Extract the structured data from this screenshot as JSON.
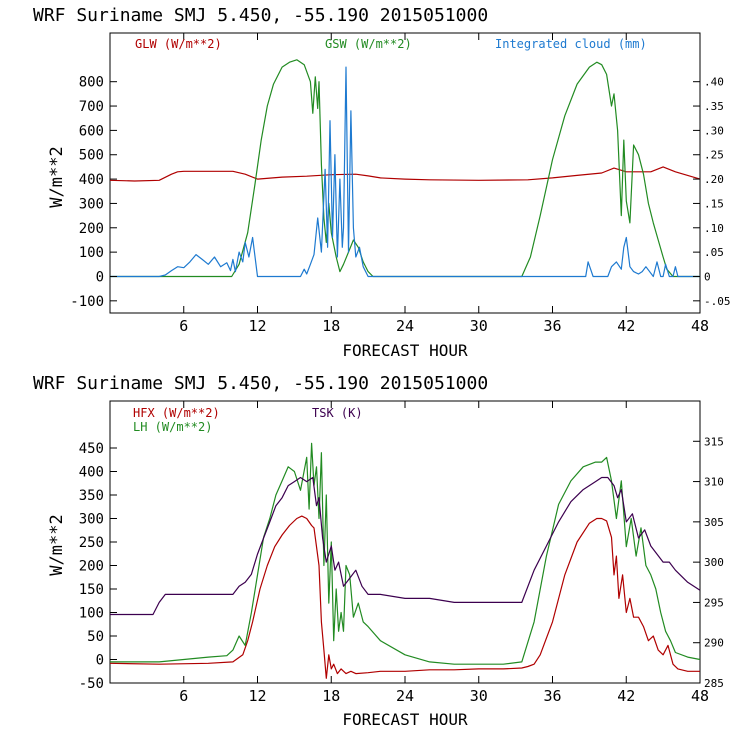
{
  "chart_data": [
    {
      "type": "line",
      "title": "WRF   Suriname SMJ   5.450, -55.190  2015051000",
      "xlabel": "FORECAST HOUR",
      "ylabel": "W/m**2",
      "xlim": [
        0,
        48
      ],
      "ylim": [
        -150,
        1000
      ],
      "y2lim": [
        -0.075,
        0.5
      ],
      "x_ticks": [
        6,
        12,
        18,
        24,
        30,
        36,
        42,
        48
      ],
      "y_ticks": [
        -100,
        0,
        100,
        200,
        300,
        400,
        500,
        600,
        700,
        800
      ],
      "y2_ticks": [
        -0.05,
        0,
        0.05,
        0.1,
        0.15,
        0.2,
        0.25,
        0.3,
        0.35,
        0.4
      ],
      "y2_tick_labels": [
        "-.05",
        "0",
        ".05",
        ".10",
        ".15",
        ".20",
        ".25",
        ".30",
        ".35",
        ".40"
      ],
      "grid": false,
      "series": [
        {
          "name": "GLW (W/m**2)",
          "color": "#b00000",
          "axis": "left",
          "x": [
            0,
            2,
            4,
            5,
            5.5,
            6,
            8,
            10,
            11,
            12,
            14,
            16,
            18,
            20,
            21,
            22,
            24,
            26,
            30,
            34,
            36,
            38,
            40,
            41,
            42,
            44,
            45,
            46,
            47,
            48
          ],
          "y": [
            395,
            392,
            395,
            420,
            430,
            432,
            432,
            432,
            420,
            400,
            408,
            412,
            418,
            420,
            413,
            405,
            400,
            397,
            395,
            397,
            405,
            415,
            425,
            445,
            430,
            430,
            450,
            430,
            415,
            400
          ]
        },
        {
          "name": "GSW (W/m**2)",
          "color": "#228b22",
          "axis": "left",
          "x": [
            0,
            9.9,
            10.5,
            11.2,
            11.8,
            12.3,
            12.8,
            13.3,
            14,
            14.6,
            15.2,
            15.8,
            16.3,
            16.5,
            16.7,
            16.9,
            17,
            17.2,
            17.4,
            17.6,
            17.8,
            18,
            18.4,
            18.7,
            19,
            19.4,
            19.8,
            20.2,
            20.6,
            21,
            21.4,
            33.5,
            34.2,
            35,
            36,
            37,
            38,
            39,
            39.6,
            40,
            40.4,
            40.8,
            41,
            41.3,
            41.6,
            41.8,
            42,
            42.3,
            42.6,
            43,
            43.4,
            43.8,
            44.2,
            44.6,
            45,
            45.3,
            45.8,
            46,
            48
          ],
          "y": [
            0,
            0,
            50,
            180,
            380,
            560,
            700,
            790,
            860,
            880,
            890,
            870,
            800,
            670,
            820,
            690,
            800,
            460,
            240,
            140,
            300,
            180,
            80,
            20,
            50,
            100,
            150,
            120,
            60,
            20,
            0,
            0,
            80,
            250,
            480,
            660,
            790,
            860,
            880,
            870,
            830,
            700,
            750,
            600,
            250,
            560,
            310,
            220,
            540,
            500,
            420,
            300,
            220,
            150,
            80,
            30,
            0,
            0,
            0
          ]
        },
        {
          "name": "Integrated cloud (mm)",
          "color": "#1e7ad0",
          "axis": "right",
          "x": [
            0,
            4,
            4.5,
            5,
            5.5,
            6,
            6.5,
            7,
            7.5,
            8,
            8.5,
            9,
            9.5,
            9.8,
            10,
            10.2,
            10.5,
            10.8,
            11,
            11.3,
            11.6,
            12,
            15.5,
            15.8,
            16,
            16.3,
            16.6,
            16.9,
            17.2,
            17.5,
            17.7,
            17.9,
            18.1,
            18.3,
            18.5,
            18.7,
            18.9,
            19,
            19.2,
            19.4,
            19.6,
            19.8,
            20,
            20.3,
            20.6,
            21,
            21.5,
            38.7,
            38.9,
            39.1,
            39.3,
            40.5,
            40.8,
            41.2,
            41.6,
            41.8,
            42,
            42.3,
            42.6,
            43,
            43.3,
            43.6,
            44.2,
            44.5,
            44.8,
            45,
            45.2,
            45.5,
            45.8,
            46,
            46.2,
            48
          ],
          "y": [
            0,
            0,
            0.003,
            0.012,
            0.02,
            0.018,
            0.03,
            0.045,
            0.035,
            0.025,
            0.04,
            0.02,
            0.028,
            0.012,
            0.035,
            0.01,
            0.05,
            0.03,
            0.07,
            0.04,
            0.08,
            0,
            0,
            0.015,
            0.005,
            0.025,
            0.045,
            0.12,
            0.05,
            0.22,
            0.06,
            0.32,
            0.08,
            0.25,
            0.04,
            0.2,
            0.06,
            0.1,
            0.43,
            0.05,
            0.34,
            0.1,
            0.04,
            0.06,
            0.02,
            0,
            0,
            0,
            0.03,
            0.015,
            0,
            0,
            0.02,
            0.03,
            0.015,
            0.06,
            0.08,
            0.02,
            0.01,
            0.005,
            0.01,
            0.02,
            0,
            0.03,
            0,
            0,
            0.025,
            0,
            0,
            0.02,
            0,
            0
          ]
        }
      ]
    },
    {
      "type": "line",
      "title": "WRF   Suriname SMJ   5.450, -55.190  2015051000",
      "xlabel": "FORECAST HOUR",
      "ylabel": "W/m**2",
      "xlim": [
        0,
        48
      ],
      "ylim": [
        -50,
        550
      ],
      "y2lim": [
        285,
        320
      ],
      "x_ticks": [
        6,
        12,
        18,
        24,
        30,
        36,
        42,
        48
      ],
      "y_ticks": [
        -50,
        0,
        50,
        100,
        150,
        200,
        250,
        300,
        350,
        400,
        450
      ],
      "y2_ticks": [
        285,
        290,
        295,
        300,
        305,
        310,
        315
      ],
      "y2_tick_labels": [
        "285",
        "290",
        "295",
        "300",
        "305",
        "310",
        "315"
      ],
      "grid": false,
      "series": [
        {
          "name": "HFX (W/m**2)",
          "color": "#b00000",
          "axis": "left",
          "x": [
            0,
            4,
            8,
            10,
            10.8,
            11.2,
            11.6,
            12.2,
            12.8,
            13.4,
            14,
            14.6,
            15.2,
            15.6,
            16,
            16.4,
            16.6,
            16.8,
            17,
            17.2,
            17.4,
            17.6,
            17.8,
            18,
            18.2,
            18.5,
            18.8,
            19.2,
            19.6,
            20,
            21,
            22,
            24,
            26,
            28,
            30,
            32,
            33.5,
            34,
            34.5,
            35,
            36,
            37,
            38,
            39,
            39.6,
            40,
            40.4,
            40.8,
            41,
            41.2,
            41.4,
            41.7,
            42,
            42.3,
            42.6,
            43,
            43.4,
            43.8,
            44.2,
            44.6,
            45,
            45.4,
            45.8,
            46.2,
            47,
            48
          ],
          "y": [
            -8,
            -10,
            -8,
            -5,
            10,
            40,
            80,
            150,
            200,
            240,
            265,
            285,
            300,
            305,
            300,
            285,
            280,
            240,
            200,
            80,
            20,
            -40,
            10,
            -20,
            -10,
            -30,
            -20,
            -30,
            -25,
            -30,
            -28,
            -25,
            -25,
            -22,
            -22,
            -20,
            -20,
            -18,
            -15,
            -10,
            10,
            80,
            180,
            250,
            290,
            300,
            300,
            295,
            260,
            180,
            220,
            130,
            180,
            100,
            130,
            90,
            90,
            70,
            40,
            50,
            20,
            10,
            30,
            -10,
            -20,
            -25,
            -25
          ]
        },
        {
          "name": "LH (W/m**2)",
          "color": "#228b22",
          "axis": "left",
          "x": [
            0,
            4,
            8,
            9.5,
            10,
            10.5,
            11,
            11.5,
            12,
            12.5,
            13,
            13.5,
            14,
            14.5,
            15,
            15.5,
            16,
            16.2,
            16.4,
            16.6,
            16.8,
            17,
            17.2,
            17.4,
            17.6,
            17.8,
            18,
            18.2,
            18.4,
            18.6,
            18.8,
            19,
            19.2,
            19.5,
            19.8,
            20.2,
            20.6,
            21,
            22,
            24,
            26,
            28,
            30,
            32,
            33.5,
            34.5,
            35.5,
            36.5,
            37.5,
            38.5,
            39.5,
            40,
            40.4,
            40.8,
            41.2,
            41.6,
            42,
            42.4,
            42.8,
            43.2,
            43.6,
            44,
            44.4,
            44.8,
            45.2,
            45.6,
            46,
            47,
            48
          ],
          "y": [
            -5,
            -5,
            5,
            8,
            20,
            50,
            30,
            100,
            180,
            260,
            300,
            350,
            380,
            410,
            400,
            360,
            430,
            320,
            460,
            370,
            410,
            300,
            440,
            200,
            350,
            120,
            250,
            40,
            150,
            60,
            100,
            60,
            200,
            180,
            90,
            120,
            80,
            70,
            40,
            10,
            -5,
            -10,
            -10,
            -10,
            -5,
            80,
            220,
            330,
            380,
            410,
            420,
            420,
            430,
            380,
            300,
            380,
            240,
            300,
            220,
            280,
            200,
            180,
            150,
            100,
            60,
            40,
            15,
            5,
            0
          ]
        },
        {
          "name": "TSK (K)",
          "color": "#3c004f",
          "axis": "right",
          "x": [
            0,
            3.5,
            4,
            4.5,
            6,
            8,
            9,
            10,
            10.5,
            11,
            11.5,
            12,
            12.5,
            13,
            13.5,
            14,
            14.5,
            15,
            15.5,
            16,
            16.5,
            16.8,
            17,
            17.3,
            17.6,
            18,
            18.3,
            18.6,
            19,
            19.5,
            20,
            20.5,
            21,
            22,
            24,
            26,
            28,
            30,
            32,
            33.5,
            34.5,
            35.5,
            36.5,
            37.5,
            38.5,
            39.5,
            40,
            40.5,
            41,
            41.3,
            41.6,
            42,
            42.5,
            43,
            43.5,
            44,
            44.5,
            45,
            45.5,
            46,
            47,
            48
          ],
          "y": [
            293.5,
            293.5,
            295,
            296,
            296,
            296,
            296,
            296,
            297,
            297.5,
            298.5,
            301,
            303,
            305,
            307,
            308,
            309.5,
            310,
            310.5,
            310,
            310.5,
            307,
            308,
            303,
            300,
            302,
            299,
            300,
            297,
            298,
            299,
            297,
            296,
            296,
            295.5,
            295.5,
            295,
            295,
            295,
            295,
            299,
            302,
            305,
            307.5,
            309,
            310,
            310.5,
            310.5,
            309.5,
            308,
            309,
            305,
            306,
            303,
            304,
            302,
            301,
            300,
            300,
            299,
            297.5,
            296.5
          ]
        }
      ]
    }
  ]
}
